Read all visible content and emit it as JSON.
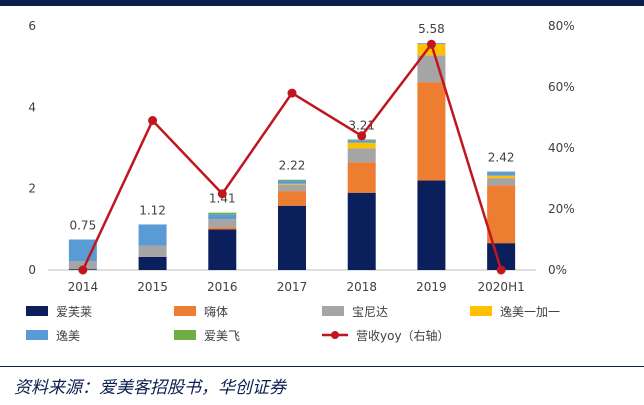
{
  "chart_data": {
    "type": "bar",
    "stacked": true,
    "categories": [
      "2014",
      "2015",
      "2016",
      "2017",
      "2018",
      "2019",
      "2020H1"
    ],
    "series": [
      {
        "name": "爱芙莱",
        "color": "#0b1f5c",
        "values": [
          0.02,
          0.32,
          1.0,
          1.58,
          1.9,
          2.2,
          0.66
        ]
      },
      {
        "name": "嗨体",
        "color": "#ed7d31",
        "values": [
          0.0,
          0.0,
          0.05,
          0.36,
          0.75,
          2.42,
          1.42
        ]
      },
      {
        "name": "宝尼达",
        "color": "#a5a5a5",
        "values": [
          0.2,
          0.28,
          0.2,
          0.16,
          0.34,
          0.66,
          0.18
        ]
      },
      {
        "name": "逸美一加一",
        "color": "#ffc000",
        "values": [
          0.0,
          0.0,
          0.0,
          0.02,
          0.14,
          0.28,
          0.06
        ]
      },
      {
        "name": "逸美",
        "color": "#5b9bd5",
        "values": [
          0.53,
          0.52,
          0.12,
          0.08,
          0.06,
          0.02,
          0.1
        ]
      },
      {
        "name": "爱美飞",
        "color": "#70ad47",
        "values": [
          0.0,
          0.0,
          0.04,
          0.02,
          0.02,
          0.0,
          0.0
        ]
      }
    ],
    "totals": [
      0.75,
      1.12,
      1.41,
      2.22,
      3.21,
      5.58,
      2.42
    ],
    "total_labels": [
      "0.75",
      "1.12",
      "1.41",
      "2.22",
      "3.21",
      "5.58",
      "2.42"
    ],
    "line": {
      "name": "营收yoy（右轴）",
      "color": "#c0161f",
      "values": [
        0,
        49,
        25,
        58,
        44,
        74,
        0
      ]
    },
    "y_left": {
      "min": 0,
      "max": 6,
      "ticks": [
        0,
        2,
        4,
        6
      ],
      "tick_labels": [
        "0",
        "2",
        "4",
        "6"
      ]
    },
    "y_right": {
      "min": 0,
      "max": 80,
      "ticks": [
        0,
        20,
        40,
        60,
        80
      ],
      "tick_labels": [
        "0%",
        "20%",
        "40%",
        "60%",
        "80%"
      ]
    },
    "legend": [
      {
        "label": "爱芙莱",
        "kind": "rect",
        "color": "#0b1f5c"
      },
      {
        "label": "嗨体",
        "kind": "rect",
        "color": "#ed7d31"
      },
      {
        "label": "宝尼达",
        "kind": "rect",
        "color": "#a5a5a5"
      },
      {
        "label": "逸美一加一",
        "kind": "rect",
        "color": "#ffc000"
      },
      {
        "label": "逸美",
        "kind": "rect",
        "color": "#5b9bd5"
      },
      {
        "label": "爱美飞",
        "kind": "rect",
        "color": "#70ad47"
      },
      {
        "label": "营收yoy（右轴）",
        "kind": "line",
        "color": "#c0161f"
      }
    ],
    "legend_position": "bottom"
  },
  "source_text": "资料来源：爱美客招股书，华创证券"
}
